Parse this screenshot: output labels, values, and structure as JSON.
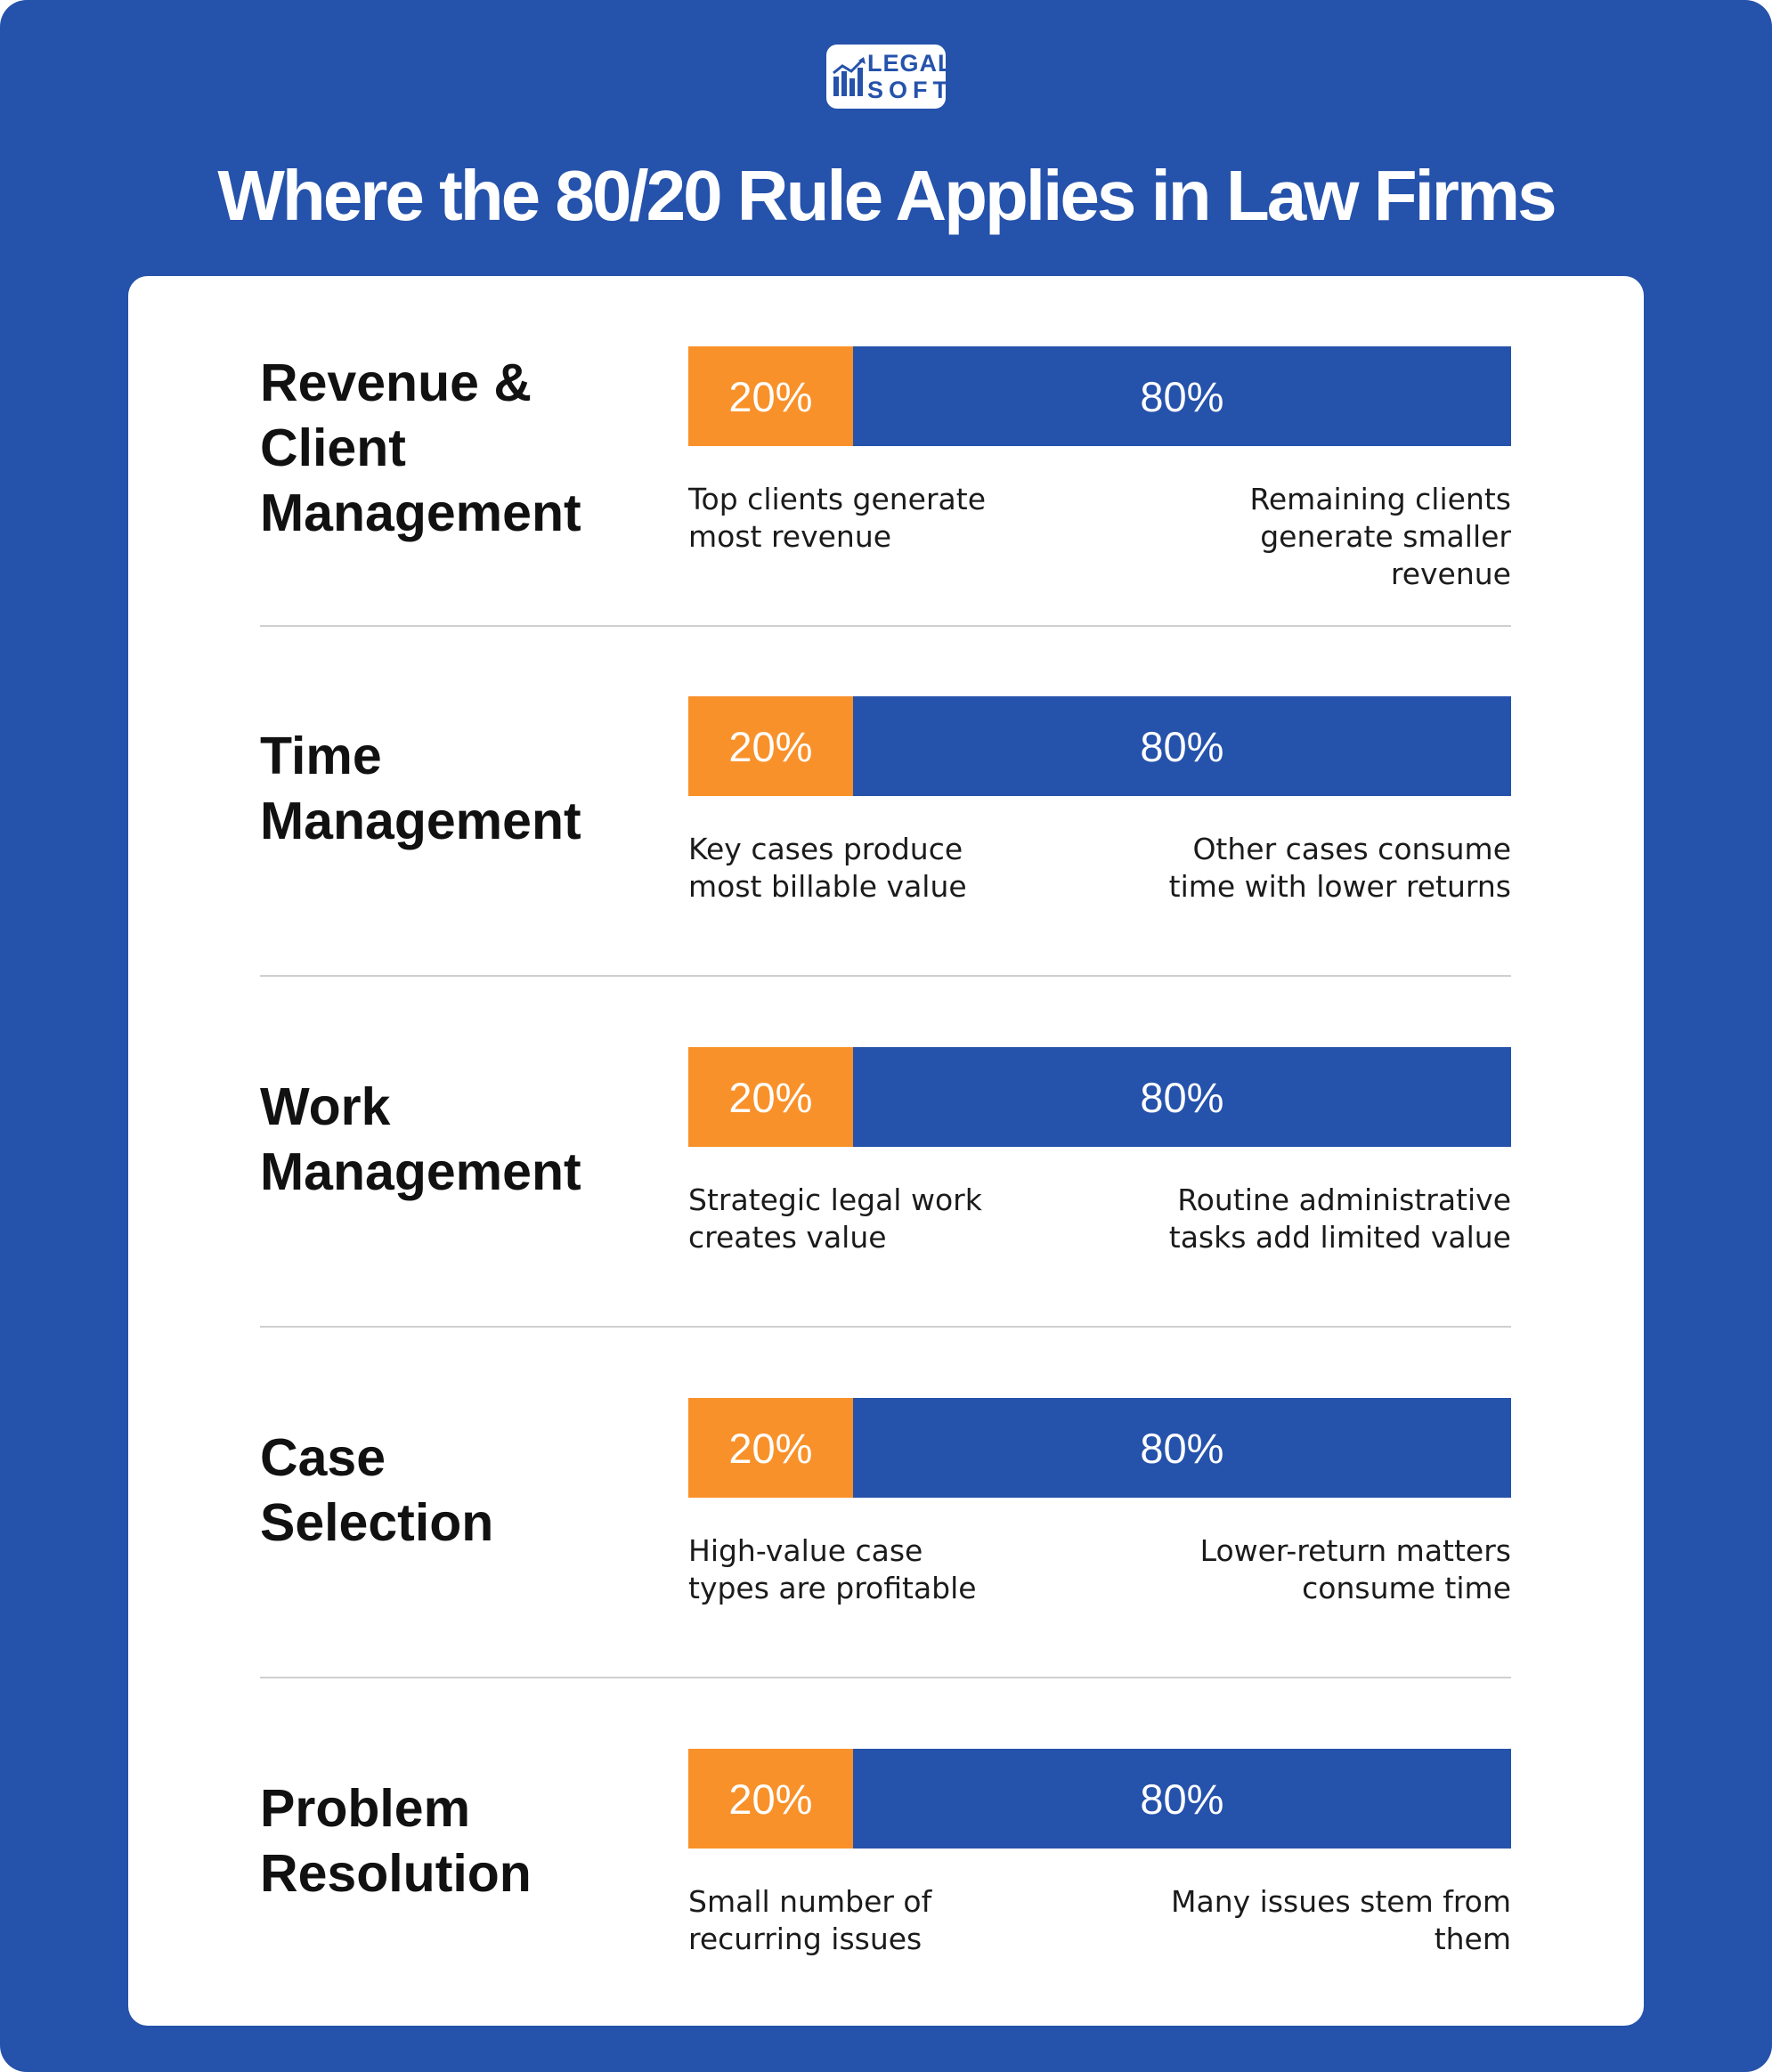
{
  "brand": {
    "logo_line1": "LEGAL",
    "logo_line2": "SOFT"
  },
  "title": "Where the 80/20 Rule Applies in Law Firms",
  "colors": {
    "background": "#2552ab",
    "accent_orange": "#f9912a",
    "accent_blue": "#2552ab"
  },
  "rows": [
    {
      "title_lines": [
        "Revenue &",
        "Client",
        "Management"
      ],
      "first_label": "20%",
      "first_pct": 20,
      "second_label": "80%",
      "second_pct": 80,
      "left_desc": [
        "Top clients generate",
        "most revenue"
      ],
      "right_desc": [
        "Remaining clients",
        "generate smaller revenue"
      ]
    },
    {
      "title_lines": [
        "Time",
        "Management"
      ],
      "first_label": "20%",
      "first_pct": 20,
      "second_label": "80%",
      "second_pct": 80,
      "left_desc": [
        "Key cases produce",
        "most billable value"
      ],
      "right_desc": [
        "Other cases consume",
        "time with lower returns"
      ]
    },
    {
      "title_lines": [
        "Work",
        "Management"
      ],
      "first_label": "20%",
      "first_pct": 20,
      "second_label": "80%",
      "second_pct": 80,
      "left_desc": [
        "Strategic legal work",
        "creates value"
      ],
      "right_desc": [
        "Routine administrative",
        "tasks add limited value"
      ]
    },
    {
      "title_lines": [
        "Case",
        "Selection"
      ],
      "first_label": "20%",
      "first_pct": 20,
      "second_label": "80%",
      "second_pct": 80,
      "left_desc": [
        "High-value case",
        "types are profitable"
      ],
      "right_desc": [
        "Lower-return matters",
        "consume time"
      ]
    },
    {
      "title_lines": [
        "Problem",
        "Resolution"
      ],
      "first_label": "20%",
      "first_pct": 20,
      "second_label": "80%",
      "second_pct": 80,
      "left_desc": [
        "Small number of",
        "recurring issues"
      ],
      "right_desc": [
        "Many issues stem from",
        "them"
      ]
    }
  ]
}
